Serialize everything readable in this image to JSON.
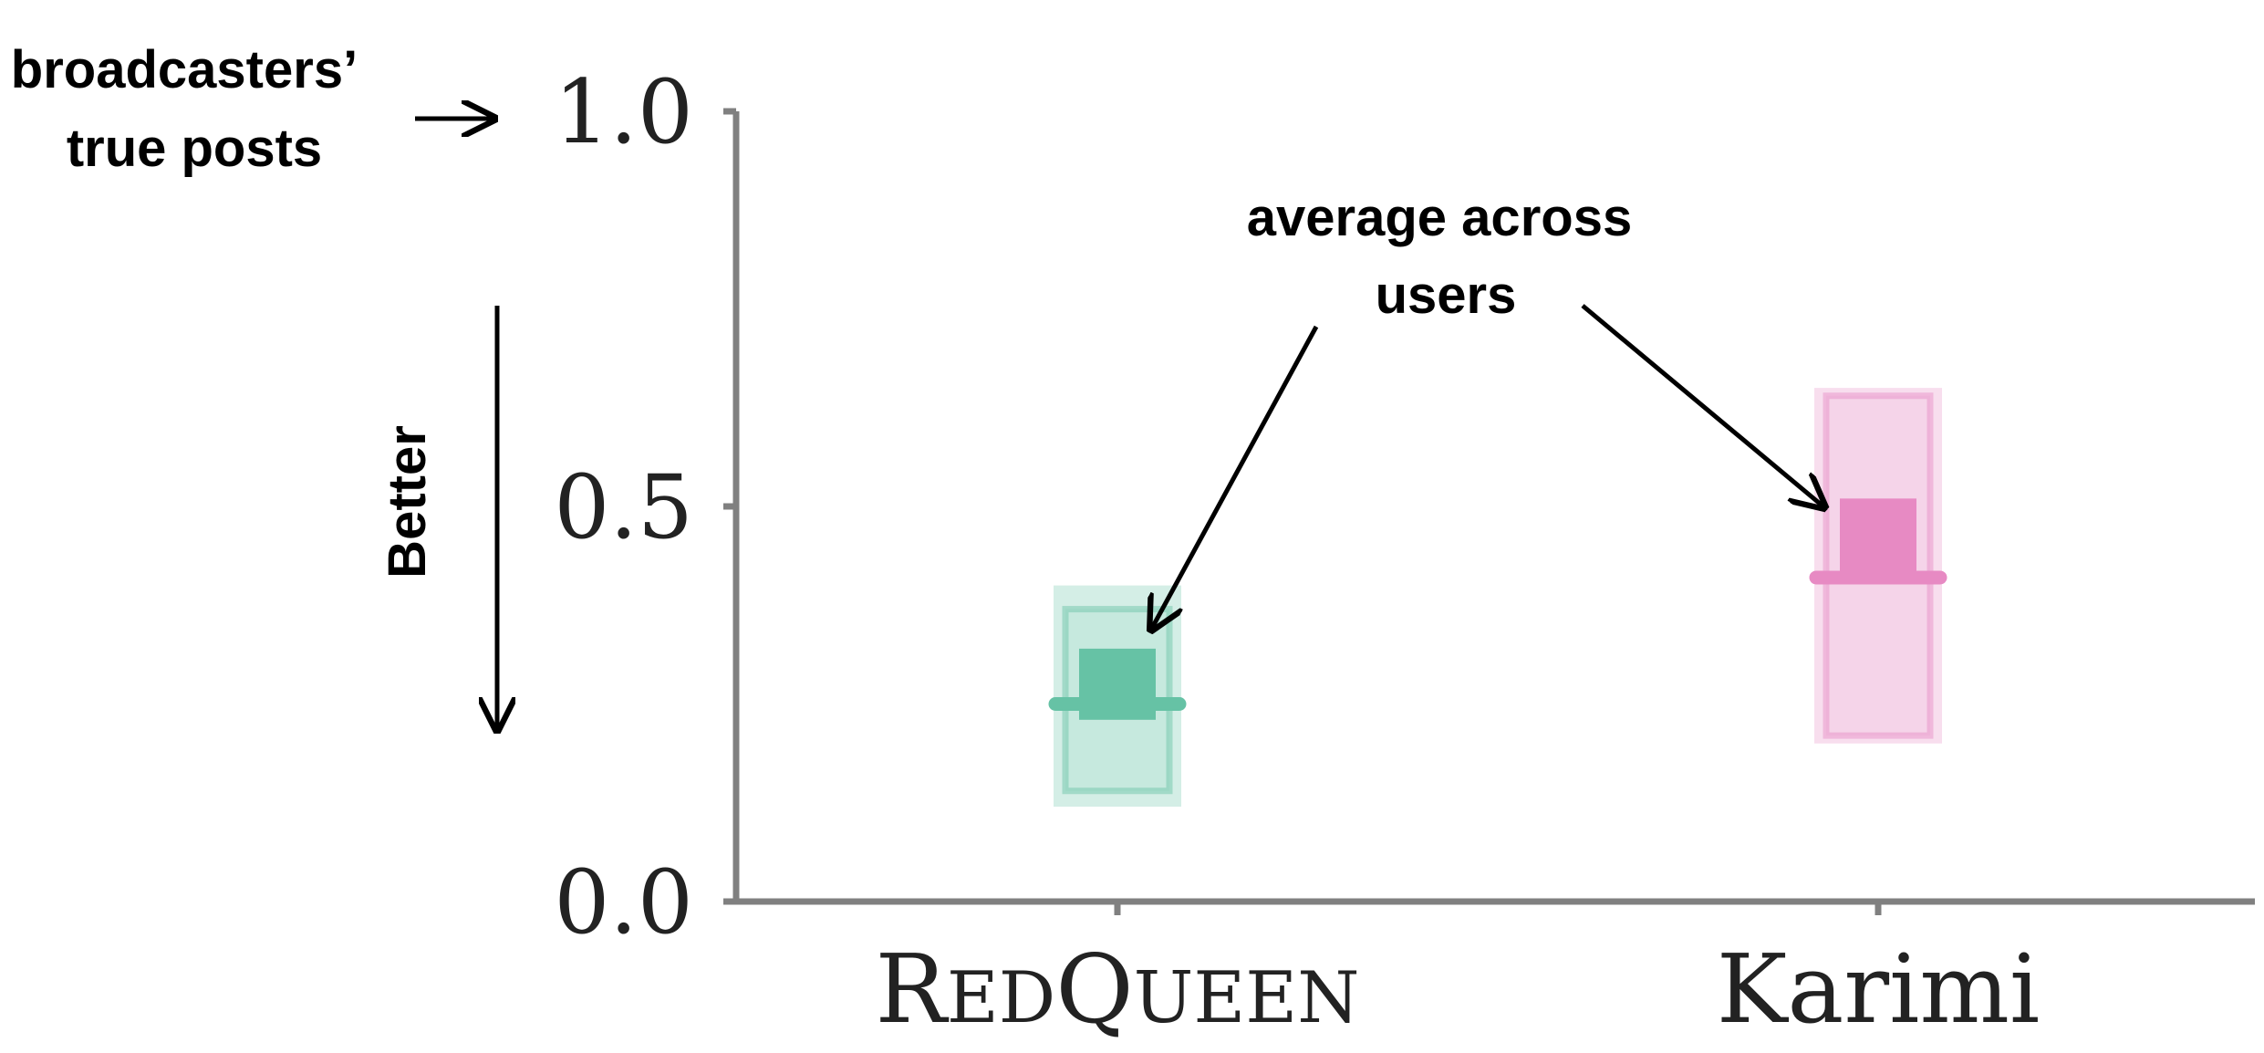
{
  "chart_data": {
    "type": "box",
    "ylim": [
      0,
      1
    ],
    "yticks": [
      "0.0",
      "0.5",
      "1.0"
    ],
    "categories": [
      "RedQueen",
      "Karimi"
    ],
    "colors": {
      "RedQueen": "#66c2a5",
      "Karimi": "#e78ac3"
    },
    "series": [
      {
        "category": "RedQueen",
        "whisker_low": 0.12,
        "whisker_high": 0.4,
        "q1": 0.14,
        "q3": 0.37,
        "median": 0.25,
        "mean_low": 0.23,
        "mean_high": 0.32
      },
      {
        "category": "Karimi",
        "whisker_low": 0.2,
        "whisker_high": 0.65,
        "q1": 0.21,
        "q3": 0.64,
        "median": 0.41,
        "mean_low": 0.41,
        "mean_high": 0.51
      }
    ],
    "annotations": {
      "broadcasters": [
        "broadcasters’",
        "true posts"
      ],
      "better": "Better",
      "average": [
        "average across",
        "users"
      ]
    }
  }
}
